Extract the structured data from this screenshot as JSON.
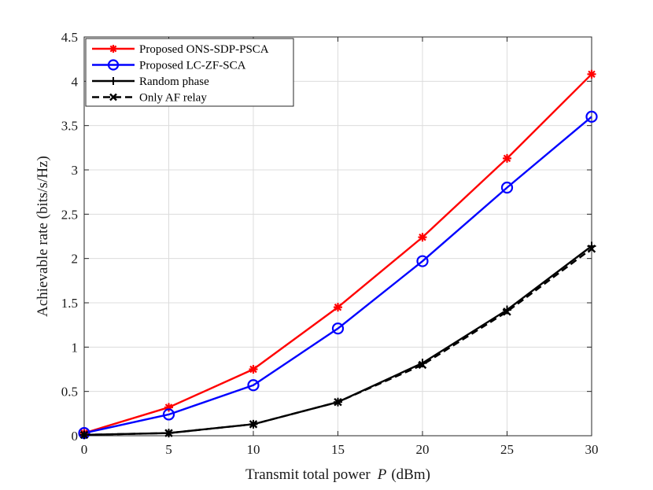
{
  "chart_data": {
    "type": "line",
    "title": "",
    "xlabel_main": "Transmit total power",
    "xlabel_var": "P",
    "xlabel_unit": "(dBm)",
    "ylabel": "Achievable rate (bits/s/Hz)",
    "x": [
      0,
      5,
      10,
      15,
      20,
      25,
      30
    ],
    "xlim": [
      0,
      30
    ],
    "ylim": [
      0,
      4.5
    ],
    "xticks": [
      0,
      5,
      10,
      15,
      20,
      25,
      30
    ],
    "yticks": [
      0,
      0.5,
      1,
      1.5,
      2,
      2.5,
      3,
      3.5,
      4,
      4.5
    ],
    "ytick_labels": [
      "0",
      "0.5",
      "1",
      "1.5",
      "2",
      "2.5",
      "3",
      "3.5",
      "4",
      "4.5"
    ],
    "grid": true,
    "legend_position": "top-left",
    "series": [
      {
        "name": "Proposed ONS-SDP-PSCA",
        "color": "#ff0000",
        "marker": "asterisk",
        "dash": "solid",
        "values": [
          0.03,
          0.32,
          0.75,
          1.45,
          2.24,
          3.13,
          4.08
        ]
      },
      {
        "name": "Proposed LC-ZF-SCA",
        "color": "#0000ff",
        "marker": "circle",
        "dash": "solid",
        "values": [
          0.03,
          0.24,
          0.57,
          1.21,
          1.97,
          2.8,
          3.6
        ]
      },
      {
        "name": "Random phase",
        "color": "#000000",
        "marker": "plus",
        "dash": "solid",
        "values": [
          0.01,
          0.03,
          0.13,
          0.38,
          0.82,
          1.42,
          2.14
        ]
      },
      {
        "name": "Only AF relay",
        "color": "#000000",
        "marker": "cross",
        "dash": "dashed",
        "values": [
          0.01,
          0.03,
          0.13,
          0.38,
          0.8,
          1.4,
          2.11
        ]
      }
    ]
  }
}
